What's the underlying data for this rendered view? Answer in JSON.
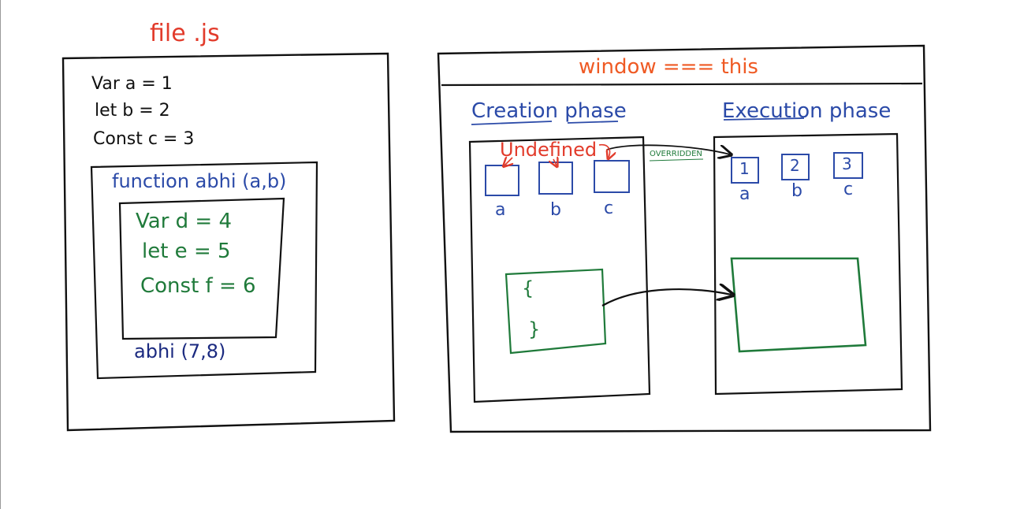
{
  "colors": {
    "black": "#111111",
    "green": "#1f7a3a",
    "blue": "#2b4aa8",
    "red": "#e23b2b",
    "orange": "#ef5a24",
    "navy": "#1b2a80"
  },
  "file_panel": {
    "title": "file .js",
    "globals": [
      "Var  a = 1",
      "let  b = 2",
      "Const  c = 3"
    ],
    "function_header": "function abhi (a,b)",
    "locals": [
      "Var   d = 4",
      "let    e = 5",
      "Const  f = 6"
    ],
    "call": "abhi (7,8)"
  },
  "context_panel": {
    "header": "window === this",
    "creation_title": "Creation phase",
    "execution_title": "Execution phase",
    "undefined_label": "Undefined",
    "overridden_label": "OVERRIDDEN",
    "creation_vars": [
      "a",
      "b",
      "c"
    ],
    "execution_values": [
      "1",
      "2",
      "3"
    ],
    "execution_vars": [
      "a",
      "b",
      "c"
    ],
    "fn_open": "{",
    "fn_close": "}"
  }
}
